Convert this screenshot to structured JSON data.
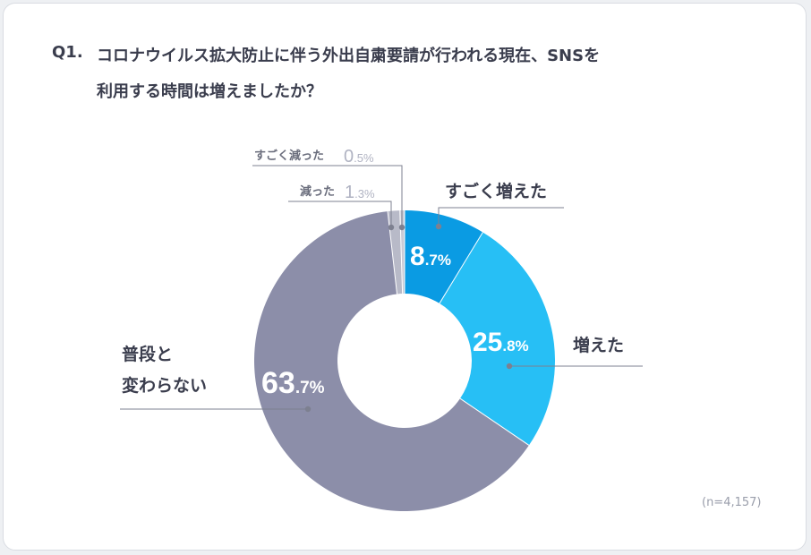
{
  "question": {
    "number": "Q1.",
    "line1": "コロナウイルス拡大防止に伴う外出自粛要請が行われる現在、SNSを",
    "line2": "利用する時間は増えましたか？"
  },
  "sample_size": "(n=4,157)",
  "chart_data": {
    "type": "pie",
    "donut": true,
    "unit": "%",
    "slices": [
      {
        "label": "すごく増えた",
        "value": 8.7,
        "display_int": "8",
        "display_dec": ".7%",
        "color": "#0a9be3"
      },
      {
        "label": "増えた",
        "value": 25.8,
        "display_int": "25",
        "display_dec": ".8%",
        "color": "#27bff5"
      },
      {
        "label": "普段と変わらない",
        "label_lines": [
          "普段と",
          "変わらない"
        ],
        "value": 63.7,
        "display_int": "63",
        "display_dec": ".7%",
        "color": "#8c8ea9"
      },
      {
        "label": "減った",
        "value": 1.3,
        "display_int": "1",
        "display_dec": ".3%",
        "color": "#b8bac8"
      },
      {
        "label": "すごく減った",
        "value": 0.5,
        "display_int": "0",
        "display_dec": ".5%",
        "color": "#c9cbd6"
      }
    ]
  }
}
